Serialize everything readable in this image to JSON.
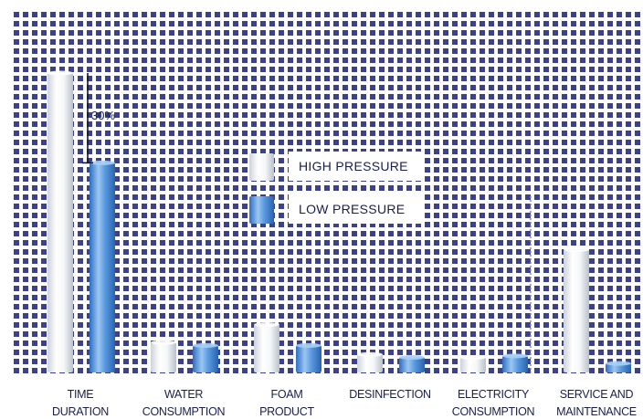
{
  "chart_data": {
    "type": "bar",
    "title": "",
    "xlabel": "",
    "ylabel": "",
    "categories": [
      [
        "TIME",
        "DURATION"
      ],
      [
        "WATER",
        "CONSUMPTION"
      ],
      [
        "FOAM",
        "PRODUCT"
      ],
      [
        "DESINFECTION"
      ],
      [
        "ELECTRICITY",
        "CONSUMPTION"
      ],
      [
        "SERVICE AND",
        "MAINTENANCE"
      ]
    ],
    "series": [
      {
        "name": "HIGH PRESSURE",
        "values": [
          100,
          10,
          16,
          6,
          5,
          41
        ],
        "style": "white-cylinder"
      },
      {
        "name": "LOW PRESSURE",
        "values": [
          70,
          9,
          9,
          5,
          5.5,
          3
        ],
        "style": "blue-cylinder"
      }
    ],
    "ylim": [
      0,
      100
    ],
    "grid": true,
    "legend_position": "center",
    "annotation": {
      "text": "30%",
      "between": "TIME DURATION high and low pressure bars"
    },
    "colors": {
      "plot_background": "#3a3f86",
      "grid_lines": "#ffffff",
      "high_pressure": "#eef1f4",
      "low_pressure": "#4f90d9",
      "label_text": "#1a1f4a"
    }
  }
}
